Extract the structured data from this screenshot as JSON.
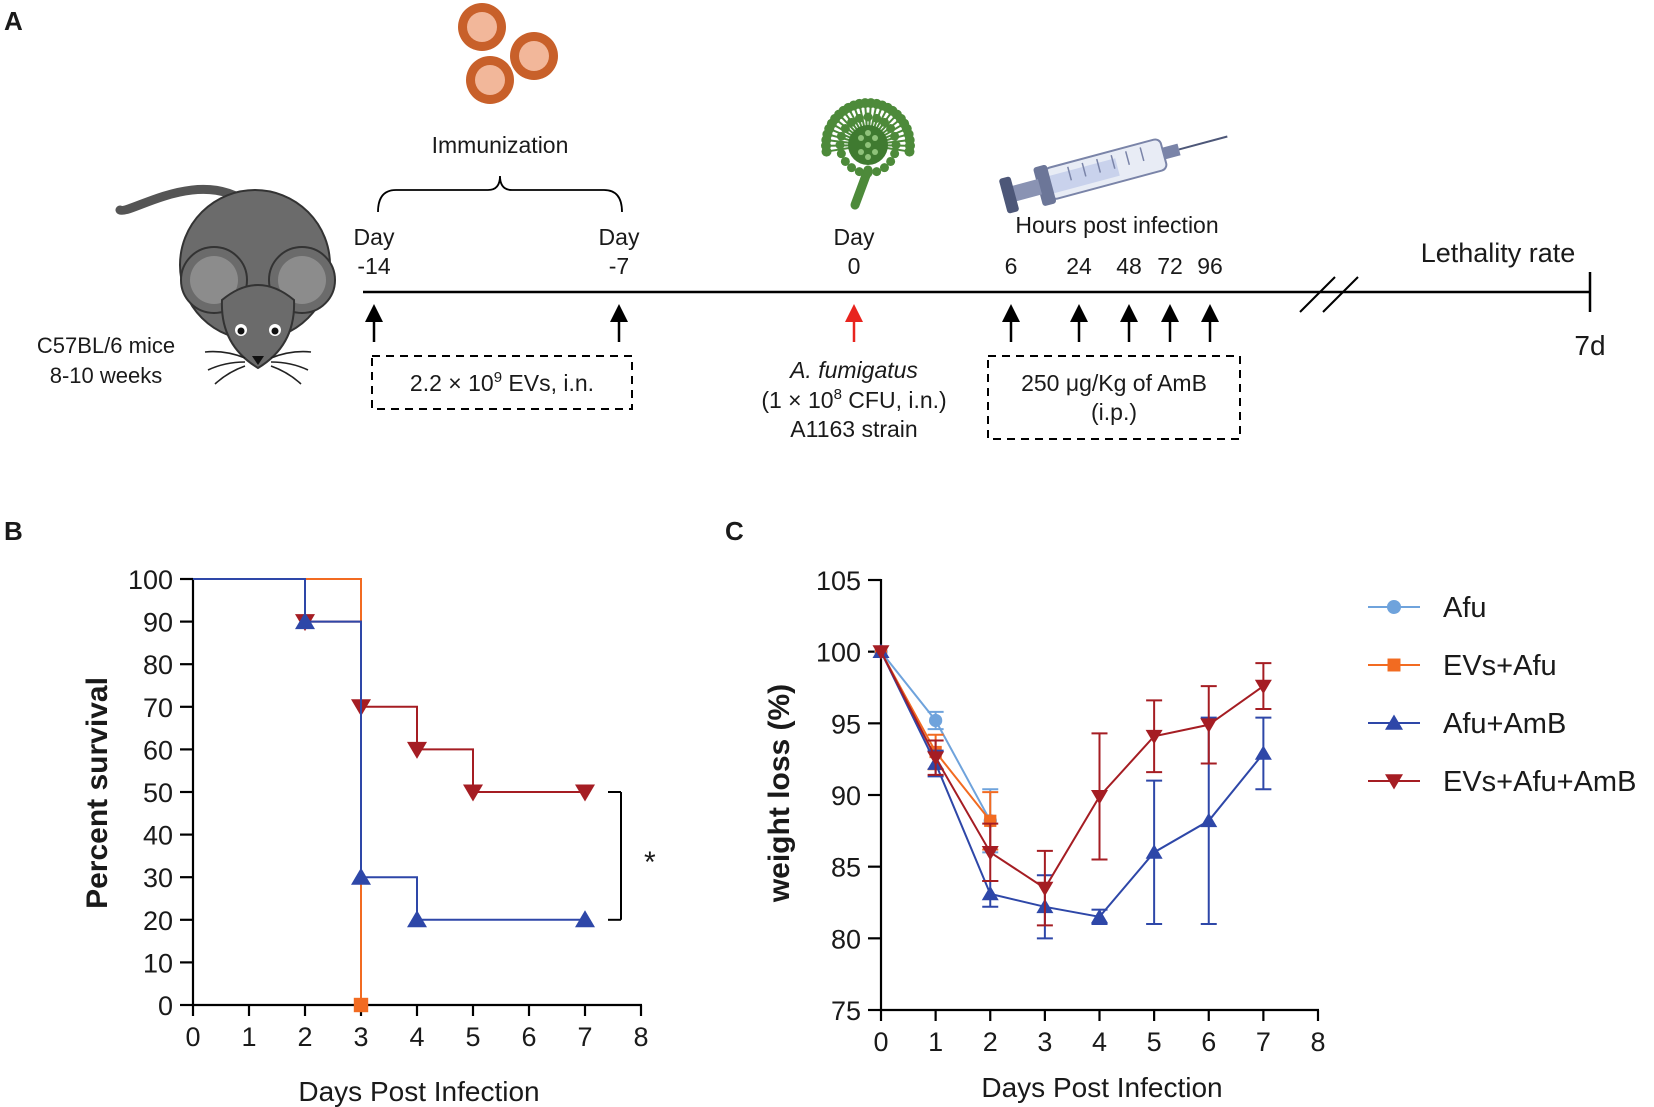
{
  "panels": {
    "a": "A",
    "b": "B",
    "c": "C"
  },
  "timeline": {
    "mouse_strain": "C57BL/6 mice",
    "mouse_age": "8-10 weeks",
    "immunization_label": "Immunization",
    "day_word": "Day",
    "day_minus14": "-14",
    "day_minus7": "-7",
    "day_zero": "0",
    "hours_label": "Hours post infection",
    "hours": [
      "6",
      "24",
      "48",
      "72",
      "96"
    ],
    "lethality_label": "Lethality rate",
    "end_label": "7d",
    "ev_dose_prefix": "2.2 × 10",
    "ev_dose_exp": "9",
    "ev_dose_suffix": " EVs, i.n.",
    "pathogen_name": "A. fumigatus",
    "pathogen_dose_prefix": "(1 × 10",
    "pathogen_dose_exp": "8",
    "pathogen_dose_suffix": " CFU, i.n.)",
    "strain": "A1163 strain",
    "amb_dose": "250 μg/Kg of AmB",
    "amb_route": "(i.p.)",
    "colors": {
      "ev": "#c8602a",
      "ev_inner": "#f2b79a",
      "fungus": "#4d8a3a",
      "infection_arrow": "#e8241e",
      "mouse": "#6b6b6b"
    }
  },
  "legend": {
    "items": [
      {
        "label": "Afu",
        "color": "#6fa3dc",
        "marker": "circle"
      },
      {
        "label": "EVs+Afu",
        "color": "#f26b21",
        "marker": "square"
      },
      {
        "label": "Afu+AmB",
        "color": "#2e47a8",
        "marker": "triangle-up"
      },
      {
        "label": "EVs+Afu+AmB",
        "color": "#a51d23",
        "marker": "triangle-down"
      }
    ]
  },
  "chart_data": [
    {
      "panel": "B",
      "type": "line",
      "subtype": "kaplan-meier",
      "title": "",
      "xlabel": "Days Post Infection",
      "ylabel": "Percent survival",
      "xlim": [
        0,
        8
      ],
      "ylim": [
        0,
        100
      ],
      "xticks": [
        "0",
        "1",
        "2",
        "3",
        "4",
        "5",
        "6",
        "7",
        "8"
      ],
      "yticks": [
        "0",
        "10",
        "20",
        "30",
        "40",
        "50",
        "60",
        "70",
        "80",
        "90",
        "100"
      ],
      "series": [
        {
          "name": "Afu",
          "color": "#6fa3dc",
          "marker": "circle",
          "steps": [
            [
              0,
              100
            ],
            [
              3,
              0
            ]
          ],
          "markers": []
        },
        {
          "name": "EVs+Afu",
          "color": "#f26b21",
          "marker": "square",
          "steps": [
            [
              0,
              100
            ],
            [
              3,
              0
            ]
          ],
          "markers": [
            [
              3,
              0
            ]
          ]
        },
        {
          "name": "Afu+AmB",
          "color": "#2e47a8",
          "marker": "triangle-up",
          "steps": [
            [
              0,
              100
            ],
            [
              2,
              90
            ],
            [
              3,
              30
            ],
            [
              4,
              20
            ],
            [
              7,
              20
            ]
          ],
          "markers": [
            [
              2,
              90
            ],
            [
              3,
              30
            ],
            [
              4,
              20
            ],
            [
              7,
              20
            ]
          ]
        },
        {
          "name": "EVs+Afu+AmB",
          "color": "#a51d23",
          "marker": "triangle-down",
          "steps": [
            [
              0,
              100
            ],
            [
              2,
              90
            ],
            [
              3,
              70
            ],
            [
              4,
              60
            ],
            [
              5,
              50
            ],
            [
              7,
              50
            ]
          ],
          "markers": [
            [
              2,
              90
            ],
            [
              3,
              70
            ],
            [
              4,
              60
            ],
            [
              5,
              50
            ],
            [
              7,
              50
            ]
          ]
        }
      ],
      "annotation": {
        "text": "*",
        "from": 50,
        "to": 20
      }
    },
    {
      "panel": "C",
      "type": "line",
      "title": "",
      "xlabel": "Days Post Infection",
      "ylabel": "weight loss (%)",
      "xlim": [
        0,
        8
      ],
      "ylim": [
        75,
        105
      ],
      "xticks": [
        "0",
        "1",
        "2",
        "3",
        "4",
        "5",
        "6",
        "7",
        "8"
      ],
      "yticks": [
        "75",
        "80",
        "85",
        "90",
        "95",
        "100",
        "105"
      ],
      "series": [
        {
          "name": "Afu",
          "color": "#6fa3dc",
          "marker": "circle",
          "x": [
            0,
            1,
            2
          ],
          "y": [
            100,
            95.2,
            88.2
          ],
          "err": [
            0,
            0.6,
            2.2
          ]
        },
        {
          "name": "EVs+Afu",
          "color": "#f26b21",
          "marker": "square",
          "x": [
            0,
            1,
            2
          ],
          "y": [
            100,
            93,
            88.2
          ],
          "err": [
            0,
            1.2,
            2.0
          ]
        },
        {
          "name": "Afu+AmB",
          "color": "#2e47a8",
          "marker": "triangle-up",
          "x": [
            0,
            1,
            2,
            3,
            4,
            5,
            6,
            7
          ],
          "y": [
            100,
            92.2,
            83.1,
            82.2,
            81.5,
            86,
            88.2,
            92.9
          ],
          "err": [
            0,
            0.9,
            0.9,
            2.2,
            0.5,
            5,
            7.2,
            2.5
          ]
        },
        {
          "name": "EVs+Afu+AmB",
          "color": "#a51d23",
          "marker": "triangle-down",
          "x": [
            0,
            1,
            2,
            3,
            4,
            5,
            6,
            7
          ],
          "y": [
            100,
            92.6,
            86,
            83.5,
            89.9,
            94.1,
            94.9,
            97.6
          ],
          "err": [
            0,
            1.2,
            2,
            2.6,
            4.4,
            2.5,
            2.7,
            1.6
          ]
        }
      ]
    }
  ]
}
